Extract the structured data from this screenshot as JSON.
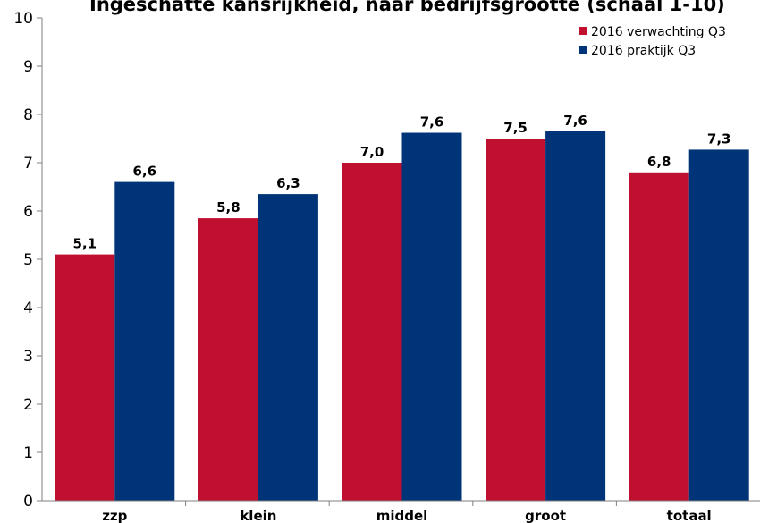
{
  "chart_data": {
    "type": "bar",
    "title": "Ingeschatte kansrijkheid, naar bedrijfsgrootte (schaal 1-10)",
    "categories": [
      "zzp",
      "klein",
      "middel",
      "groot",
      "totaal"
    ],
    "series": [
      {
        "name": "2016 verwachting Q3",
        "color": "#C0102F",
        "values": [
          5.1,
          5.85,
          7.0,
          7.5,
          6.8
        ],
        "labels": [
          "5,1",
          "5,8",
          "7,0",
          "7,5",
          "6,8"
        ]
      },
      {
        "name": "2016 praktijk Q3",
        "color": "#003478",
        "values": [
          6.6,
          6.35,
          7.62,
          7.65,
          7.27
        ],
        "labels": [
          "6,6",
          "6,3",
          "7,6",
          "7,6",
          "7,3"
        ]
      }
    ],
    "yticks": [
      "0",
      "1",
      "2",
      "3",
      "4",
      "5",
      "6",
      "7",
      "8",
      "9",
      "10"
    ],
    "ylim": [
      0,
      10
    ],
    "grid": false,
    "legend_position": "top-right",
    "xlabel": "",
    "ylabel": ""
  }
}
